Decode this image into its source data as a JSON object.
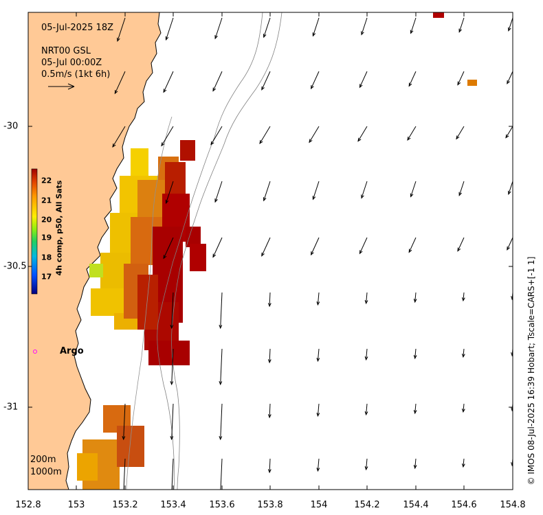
{
  "header": {
    "datetime": "05-Jul-2025 18Z",
    "model": "NRT00 GSL",
    "model_time": "05-Jul 00:00Z",
    "scale_label": "0.5m/s (1kt 6h)"
  },
  "axes": {
    "x_ticks": [
      "152.8",
      "153",
      "153.2",
      "153.4",
      "153.6",
      "153.8",
      "154",
      "154.2",
      "154.4",
      "154.6",
      "154.8"
    ],
    "y_ticks": [
      "-30",
      "-30.5",
      "-31"
    ]
  },
  "colorbar": {
    "title": "4h comp, p50, All Sats",
    "ticks": [
      "22",
      "21",
      "20",
      "19",
      "18",
      "17"
    ]
  },
  "contours": {
    "label_200": "200m",
    "label_1000": "1000m"
  },
  "argo": {
    "label": "Argo",
    "color": "#ff00ff"
  },
  "credit": "© IMOS 08-Jul-2025 16:39 Hobart; Tscale=CARS+[-1 1]",
  "colors": {
    "land": "#ffc996",
    "sst_warm": "#b00000",
    "sst_mid": "#d86a10",
    "sst_cool": "#f5d000"
  }
}
